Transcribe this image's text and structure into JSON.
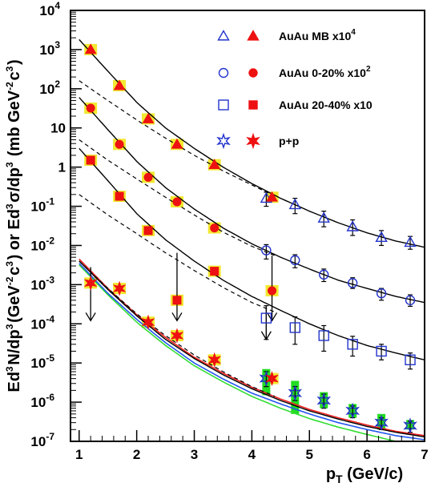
{
  "chart_data": {
    "type": "scatter",
    "xlabel": "p_T (GeV/c)",
    "xlabel_parts": {
      "main": "p",
      "sub": "T",
      "rest": " (GeV/c)"
    },
    "ylabel_parts": {
      "a": "Ed",
      "a_sup": "3",
      "b": "N/dp",
      "b_sup": "3",
      "c": "(GeV",
      "c_sup": "-2",
      "d": "c",
      "d_sup": "3",
      "e": ") or Ed",
      "e_sup": "3",
      "f": "σ/dp",
      "f_sup": "3",
      "g": " (mb GeV",
      "g_sup": "-2",
      "h": "c",
      "h_sup": "3",
      "i": ")"
    },
    "xlim": [
      0.85,
      7.0
    ],
    "ylim_log10": [
      -7,
      4
    ],
    "y_log": true,
    "x_ticks": [
      1,
      2,
      3,
      4,
      5,
      6,
      7
    ],
    "x_tick_labels": [
      "1",
      "2",
      "3",
      "4",
      "5",
      "6",
      "7"
    ],
    "y_ticks": [
      {
        "exp": 4,
        "label": "10",
        "sup": "4"
      },
      {
        "exp": 3,
        "label": "10",
        "sup": "3"
      },
      {
        "exp": 2,
        "label": "10",
        "sup": "2"
      },
      {
        "exp": 1,
        "label": "10",
        "sup": ""
      },
      {
        "exp": 0,
        "label": "1",
        "sup": ""
      },
      {
        "exp": -1,
        "label": "10",
        "sup": "-1"
      },
      {
        "exp": -2,
        "label": "10",
        "sup": "-2"
      },
      {
        "exp": -3,
        "label": "10",
        "sup": "-3"
      },
      {
        "exp": -4,
        "label": "10",
        "sup": "-4"
      },
      {
        "exp": -5,
        "label": "10",
        "sup": "-5"
      },
      {
        "exp": -6,
        "label": "10",
        "sup": "-6"
      },
      {
        "exp": -7,
        "label": "10",
        "sup": "-7"
      }
    ],
    "legend": [
      {
        "text": "AuAu MB x10",
        "sup": "4",
        "open": "triangle",
        "filled": "triangle"
      },
      {
        "text": "AuAu 0-20% x10",
        "sup": "2",
        "open": "circle",
        "filled": "circle"
      },
      {
        "text": "AuAu 20-40% x10",
        "sup": "",
        "open": "square",
        "filled": "square"
      },
      {
        "text": "p+p",
        "sup": "",
        "open": "star",
        "filled": "star"
      }
    ],
    "legend_placement": "top-right",
    "colors": {
      "filled": "#ee1111",
      "open": "#2233cc",
      "syst_band": "#f2e830",
      "pp_band": "#22dd22",
      "frame": "#000000"
    },
    "series": [
      {
        "key": "mb",
        "filled": [
          [
            1.2,
            1000
          ],
          [
            1.7,
            120
          ],
          [
            2.2,
            17
          ],
          [
            2.7,
            3.8
          ],
          [
            3.35,
            1.15
          ],
          [
            4.35,
            0.17
          ]
        ],
        "open": [
          [
            4.25,
            0.16
          ],
          [
            4.75,
            0.11
          ],
          [
            5.25,
            0.05
          ],
          [
            5.75,
            0.03
          ],
          [
            6.25,
            0.016
          ],
          [
            6.75,
            0.012
          ]
        ],
        "open_err": [
          [
            0.06,
            0.07
          ],
          [
            0.045,
            0.05
          ],
          [
            0.02,
            0.025
          ],
          [
            0.012,
            0.015
          ],
          [
            0.006,
            0.008
          ],
          [
            0.004,
            0.005
          ]
        ],
        "upper_limits": [],
        "fit_solid": [
          [
            1.0,
            1800
          ],
          [
            1.5,
            280
          ],
          [
            2.0,
            45
          ],
          [
            2.5,
            10
          ],
          [
            3.0,
            3
          ],
          [
            3.5,
            1.0
          ],
          [
            4.0,
            0.38
          ],
          [
            4.5,
            0.16
          ],
          [
            5.0,
            0.075
          ],
          [
            5.5,
            0.038
          ],
          [
            6.0,
            0.021
          ],
          [
            6.5,
            0.013
          ],
          [
            7.0,
            0.009
          ]
        ],
        "fit_dashed": [
          [
            1.0,
            160
          ],
          [
            1.5,
            50
          ],
          [
            2.0,
            16
          ],
          [
            2.5,
            5.5
          ],
          [
            3.0,
            2.0
          ],
          [
            3.5,
            0.8
          ],
          [
            4.0,
            0.35
          ],
          [
            4.4,
            0.18
          ]
        ]
      },
      {
        "key": "c020",
        "filled": [
          [
            1.2,
            32
          ],
          [
            1.7,
            3.8
          ],
          [
            2.2,
            0.55
          ],
          [
            2.7,
            0.13
          ],
          [
            3.35,
            0.028
          ],
          [
            4.35,
            0.0007
          ]
        ],
        "open": [
          [
            4.25,
            0.0075
          ],
          [
            4.75,
            0.0042
          ],
          [
            5.25,
            0.0018
          ],
          [
            5.75,
            0.0011
          ],
          [
            6.25,
            0.0006
          ],
          [
            6.75,
            0.0004
          ]
        ],
        "open_err": [
          [
            0.003,
            0.003
          ],
          [
            0.0015,
            0.0016
          ],
          [
            0.0006,
            0.0007
          ],
          [
            0.0003,
            0.0004
          ],
          [
            0.0002,
            0.0002
          ],
          [
            0.00012,
            0.00015
          ]
        ],
        "upper_limits": [
          [
            4.35,
            0.0055,
            0.00012
          ]
        ],
        "fit_solid": [
          [
            1.0,
            60
          ],
          [
            1.5,
            9
          ],
          [
            2.0,
            1.4
          ],
          [
            2.5,
            0.3
          ],
          [
            3.0,
            0.085
          ],
          [
            3.5,
            0.028
          ],
          [
            4.0,
            0.011
          ],
          [
            4.5,
            0.005
          ],
          [
            5.0,
            0.0025
          ],
          [
            5.5,
            0.0013
          ],
          [
            6.0,
            0.0008
          ],
          [
            6.5,
            0.0005
          ],
          [
            7.0,
            0.00035
          ]
        ],
        "fit_dashed": [
          [
            1.0,
            5
          ],
          [
            1.5,
            1.5
          ],
          [
            2.0,
            0.5
          ],
          [
            2.5,
            0.17
          ],
          [
            3.0,
            0.06
          ],
          [
            3.5,
            0.022
          ],
          [
            4.0,
            0.0095
          ],
          [
            4.4,
            0.0055
          ]
        ]
      },
      {
        "key": "c2040",
        "filled": [
          [
            1.2,
            1.5
          ],
          [
            1.7,
            0.18
          ],
          [
            2.2,
            0.024
          ],
          [
            2.7,
            0.0004
          ],
          [
            3.35,
            0.0022
          ]
        ],
        "open": [
          [
            4.25,
            0.00014
          ],
          [
            4.75,
            8e-05
          ],
          [
            5.25,
            5e-05
          ],
          [
            5.75,
            3e-05
          ],
          [
            6.25,
            2e-05
          ],
          [
            6.75,
            1.2e-05
          ]
        ],
        "open_err": [
          [
            0.0001,
            0.00015
          ],
          [
            5e-05,
            7e-05
          ],
          [
            3e-05,
            4e-05
          ],
          [
            1.5e-05,
            1.8e-05
          ],
          [
            8e-06,
            1e-05
          ],
          [
            5e-06,
            6e-06
          ]
        ],
        "upper_limits": [
          [
            2.7,
            0.0065,
            0.00012
          ],
          [
            4.25,
            0.0003,
            4e-05
          ]
        ],
        "fit_solid": [
          [
            1.0,
            3.0
          ],
          [
            1.5,
            0.45
          ],
          [
            2.0,
            0.065
          ],
          [
            2.5,
            0.014
          ],
          [
            3.0,
            0.004
          ],
          [
            3.5,
            0.0013
          ],
          [
            4.0,
            0.0005
          ],
          [
            4.5,
            0.00022
          ],
          [
            5.0,
            0.0001
          ],
          [
            5.5,
            5e-05
          ],
          [
            6.0,
            2.8e-05
          ],
          [
            6.5,
            1.8e-05
          ],
          [
            7.0,
            1.2e-05
          ]
        ],
        "fit_dashed": [
          [
            1.0,
            0.2
          ],
          [
            1.5,
            0.06
          ],
          [
            2.0,
            0.02
          ],
          [
            2.5,
            0.0065
          ],
          [
            3.0,
            0.0023
          ],
          [
            3.5,
            0.00085
          ],
          [
            4.0,
            0.00035
          ],
          [
            4.4,
            0.0002
          ]
        ]
      },
      {
        "key": "pp",
        "filled": [
          [
            1.2,
            0.0011
          ],
          [
            1.7,
            0.0008
          ],
          [
            2.2,
            0.00011
          ],
          [
            2.7,
            5e-05
          ],
          [
            3.35,
            1.2e-05
          ],
          [
            4.35,
            4e-06
          ]
        ],
        "open": [
          [
            4.25,
            4e-06
          ],
          [
            4.75,
            1.7e-06
          ],
          [
            5.25,
            1.1e-06
          ],
          [
            5.75,
            6e-07
          ],
          [
            6.25,
            3e-07
          ],
          [
            6.75,
            2.5e-07
          ]
        ],
        "open_err": [
          [
            1.5e-06,
            2e-06
          ],
          [
            6e-07,
            8e-07
          ],
          [
            4e-07,
            5e-07
          ],
          [
            2e-07,
            2e-07
          ],
          [
            1e-07,
            1e-07
          ],
          [
            8e-08,
            8e-08
          ]
        ],
        "syst_bands": [
          [
            4.25,
            1.5e-06,
            7e-06
          ],
          [
            4.75,
            5e-07,
            3.5e-06
          ],
          [
            5.25,
            7e-07,
            1.8e-06
          ],
          [
            5.75,
            4e-07,
            9e-07
          ],
          [
            6.25,
            2e-07,
            5e-07
          ],
          [
            6.75,
            2e-07,
            3.5e-07
          ]
        ],
        "upper_limits": [
          [
            1.2,
            0.0028,
            0.00012
          ]
        ],
        "fit_solid": [
          [
            1.0,
            0.004
          ],
          [
            1.5,
            0.00075
          ],
          [
            2.0,
            0.00016
          ],
          [
            2.5,
            4e-05
          ],
          [
            3.0,
            1.3e-05
          ],
          [
            3.5,
            5e-06
          ],
          [
            4.0,
            2.2e-06
          ],
          [
            4.5,
            1.1e-06
          ],
          [
            5.0,
            6e-07
          ],
          [
            5.5,
            3.7e-07
          ],
          [
            6.0,
            2.4e-07
          ],
          [
            6.5,
            1.7e-07
          ],
          [
            7.0,
            1.3e-07
          ]
        ],
        "fit_red": [
          [
            1.0,
            0.0045
          ],
          [
            1.5,
            0.0008
          ],
          [
            2.0,
            0.00017
          ],
          [
            2.5,
            4.5e-05
          ],
          [
            3.0,
            1.4e-05
          ],
          [
            3.5,
            5.5e-06
          ],
          [
            4.0,
            2.4e-06
          ],
          [
            4.5,
            1.2e-06
          ],
          [
            5.0,
            6.5e-07
          ],
          [
            5.5,
            4e-07
          ],
          [
            6.0,
            2.6e-07
          ],
          [
            6.5,
            1.8e-07
          ],
          [
            7.0,
            1.4e-07
          ]
        ],
        "fit_blue": [
          [
            1.0,
            0.0035
          ],
          [
            1.5,
            0.0006
          ],
          [
            2.0,
            0.00013
          ],
          [
            2.5,
            3.3e-05
          ],
          [
            3.0,
            1e-05
          ],
          [
            3.5,
            3.9e-06
          ],
          [
            4.0,
            1.7e-06
          ],
          [
            4.5,
            9e-07
          ],
          [
            5.0,
            5e-07
          ],
          [
            5.5,
            3e-07
          ],
          [
            6.0,
            2e-07
          ],
          [
            6.5,
            1.4e-07
          ],
          [
            7.0,
            1.1e-07
          ]
        ],
        "fit_green": [
          [
            1.0,
            0.0032
          ],
          [
            1.5,
            0.00055
          ],
          [
            2.0,
            0.00011
          ],
          [
            2.5,
            2.8e-05
          ],
          [
            3.0,
            8.5e-06
          ],
          [
            3.5,
            3.3e-06
          ],
          [
            4.0,
            1.4e-06
          ],
          [
            4.5,
            7e-07
          ],
          [
            5.0,
            3.8e-07
          ],
          [
            5.5,
            2.3e-07
          ],
          [
            6.0,
            1.5e-07
          ],
          [
            6.5,
            1e-07
          ],
          [
            7.0,
            8e-08
          ]
        ],
        "fit_dashed": [
          [
            1.0,
            0.004
          ],
          [
            1.5,
            0.0008
          ],
          [
            2.0,
            0.00018
          ],
          [
            2.5,
            5e-05
          ],
          [
            3.0,
            1.6e-05
          ],
          [
            3.5,
            6e-06
          ],
          [
            4.0,
            2.5e-06
          ],
          [
            4.4,
            1.4e-06
          ]
        ]
      }
    ]
  }
}
